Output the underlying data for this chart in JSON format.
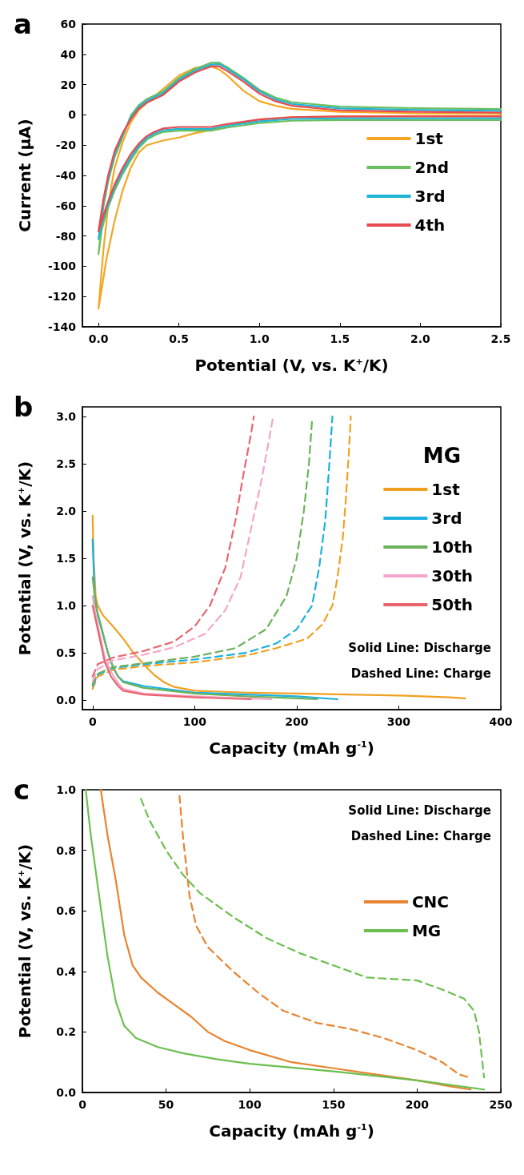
{
  "chart_data": [
    {
      "type": "line",
      "title": "a",
      "xlabel": "Potential (V, vs. K$^{+}$/K)",
      "ylabel": "Current (μA)",
      "xlim": [
        -0.1,
        2.5
      ],
      "ylim": [
        -140,
        60
      ],
      "xticks": [
        {
          "value": 0,
          "label": "0.0"
        },
        0.5,
        {
          "value": 1,
          "label": "1.0"
        },
        1.5,
        {
          "value": 2,
          "label": "2.0"
        },
        2.5
      ],
      "yticks": [
        -140,
        -120,
        -100,
        -80,
        -60,
        -40,
        -20,
        0,
        20,
        40,
        60
      ],
      "grid": false,
      "legend": "right",
      "marker": "none",
      "series": [
        {
          "name": "1st",
          "color": "#f5a623",
          "x": [
            2.5,
            1.5,
            1.2,
            1.0,
            0.8,
            0.7,
            0.6,
            0.5,
            0.4,
            0.3,
            0.25,
            0.2,
            0.15,
            0.1,
            0.05,
            0.02,
            0,
            0.03,
            0.06,
            0.1,
            0.15,
            0.2,
            0.25,
            0.3,
            0.4,
            0.5,
            0.6,
            0.7,
            0.75,
            0.8,
            0.9,
            1.0,
            1.1,
            1.2,
            1.5,
            2.0,
            2.5
          ],
          "values": [
            -0.5,
            -1,
            -1.5,
            -3,
            -7,
            -10,
            -12,
            -15,
            -17,
            -20,
            -25,
            -35,
            -50,
            -70,
            -95,
            -115,
            -128,
            -90,
            -60,
            -35,
            -18,
            -5,
            3,
            8,
            17,
            26,
            31,
            32,
            30,
            26,
            16,
            9,
            6,
            4,
            2,
            1,
            1
          ]
        },
        {
          "name": "2nd",
          "color": "#6abf5e",
          "x": [
            2.5,
            1.5,
            1.2,
            1.0,
            0.8,
            0.7,
            0.5,
            0.4,
            0.35,
            0.3,
            0.25,
            0.2,
            0.15,
            0.1,
            0.05,
            0.02,
            0,
            0.03,
            0.06,
            0.1,
            0.15,
            0.2,
            0.25,
            0.3,
            0.4,
            0.5,
            0.6,
            0.7,
            0.75,
            0.8,
            0.9,
            1.0,
            1.1,
            1.2,
            1.5,
            2.0,
            2.5
          ],
          "values": [
            -3.4,
            -3.4,
            -3.9,
            -5.4,
            -8.4,
            -10.4,
            -10.4,
            -11.4,
            -13.4,
            -16.4,
            -22,
            -30,
            -39,
            -50,
            -64,
            -76,
            -92,
            -61,
            -44,
            -28,
            -14.5,
            -0.6,
            6.4,
            10.4,
            15.4,
            24.4,
            30.4,
            34.4,
            34.5,
            31.5,
            24.5,
            16.5,
            11.4,
            8.4,
            5.4,
            4.4,
            3.9
          ]
        },
        {
          "name": "3rd",
          "color": "#1fb5d6",
          "x": [
            2.5,
            1.5,
            1.2,
            1.0,
            0.8,
            0.7,
            0.5,
            0.4,
            0.35,
            0.3,
            0.25,
            0.2,
            0.15,
            0.1,
            0.05,
            0.02,
            0,
            0.03,
            0.06,
            0.1,
            0.15,
            0.2,
            0.25,
            0.3,
            0.4,
            0.5,
            0.6,
            0.7,
            0.75,
            0.8,
            0.9,
            1.0,
            1.1,
            1.2,
            1.5,
            2.0,
            2.5
          ],
          "values": [
            -2.2,
            -2.2,
            -2.7,
            -4.2,
            -7.2,
            -9.2,
            -9.2,
            -10.2,
            -12.2,
            -15.2,
            -20.5,
            -28,
            -37,
            -48,
            -62,
            -72,
            -82,
            -58,
            -42,
            -26,
            -13,
            -1.8,
            5.2,
            9.2,
            14.2,
            23.2,
            29.2,
            33.2,
            33.5,
            30.5,
            23.5,
            15.5,
            10.2,
            7.2,
            4.2,
            3.2,
            2.7
          ]
        },
        {
          "name": "4th",
          "color": "#e84a4f",
          "x": [
            2.5,
            1.5,
            1.2,
            1.0,
            0.8,
            0.7,
            0.5,
            0.4,
            0.35,
            0.3,
            0.25,
            0.2,
            0.15,
            0.1,
            0.05,
            0.02,
            0,
            0.03,
            0.06,
            0.1,
            0.15,
            0.2,
            0.25,
            0.3,
            0.4,
            0.5,
            0.6,
            0.7,
            0.75,
            0.8,
            0.9,
            1.0,
            1.1,
            1.2,
            1.5,
            2.0,
            2.5
          ],
          "values": [
            -1,
            -1,
            -1.5,
            -3,
            -6,
            -8,
            -8,
            -9,
            -11,
            -14,
            -19,
            -26,
            -35,
            -46,
            -60,
            -70,
            -77,
            -56,
            -40,
            -24,
            -12,
            -3,
            4,
            8,
            13,
            22,
            28,
            32,
            32,
            29,
            22,
            14,
            9,
            6,
            3,
            2,
            1.5
          ]
        }
      ]
    },
    {
      "type": "line",
      "title": "b",
      "xlabel": "Capacity (mAh g$^{-1}$)",
      "ylabel": "Potential (V, vs. K$^{+}$/K)",
      "legend_title": "MG",
      "xlim": [
        -10,
        400
      ],
      "ylim": [
        -0.1,
        3.1
      ],
      "xticks": [
        0,
        100,
        200,
        300,
        400
      ],
      "yticks": [
        {
          "value": 0,
          "label": "0.0"
        },
        0.5,
        {
          "value": 1,
          "label": "1.0"
        },
        1.5,
        {
          "value": 2,
          "label": "2.0"
        },
        2.5,
        {
          "value": 3,
          "label": "3.0"
        }
      ],
      "grid": false,
      "legend": "right",
      "marker": "none",
      "annotations": [
        "Solid Line: Discharge",
        "Dashed Line: Charge"
      ],
      "series": [
        {
          "name": "1st",
          "color": "#f0a020",
          "line_style": "solid",
          "x": [
            0,
            1,
            3,
            5,
            10,
            20,
            30,
            40,
            50,
            60,
            70,
            80,
            100,
            150,
            200,
            250,
            300,
            350,
            365
          ],
          "values": [
            1.95,
            1.5,
            1.1,
            1.0,
            0.9,
            0.78,
            0.65,
            0.5,
            0.38,
            0.27,
            0.19,
            0.14,
            0.1,
            0.08,
            0.07,
            0.06,
            0.05,
            0.03,
            0.02
          ]
        },
        {
          "color": "#f0a020",
          "line_style": "dashed",
          "x": [
            0,
            5,
            20,
            50,
            100,
            150,
            180,
            210,
            225,
            235,
            240,
            245,
            248,
            251,
            253
          ],
          "values": [
            0.12,
            0.25,
            0.32,
            0.36,
            0.4,
            0.47,
            0.55,
            0.65,
            0.8,
            1.0,
            1.3,
            1.7,
            2.1,
            2.6,
            3.0
          ]
        },
        {
          "name": "3rd",
          "color": "#1ab0e0",
          "line_style": "solid",
          "x": [
            0,
            2,
            5,
            10,
            15,
            20,
            25,
            30,
            50,
            100,
            150,
            200,
            240
          ],
          "values": [
            1.7,
            1.1,
            0.9,
            0.7,
            0.5,
            0.35,
            0.25,
            0.2,
            0.15,
            0.08,
            0.06,
            0.04,
            0.01
          ]
        },
        {
          "color": "#1ab0e0",
          "line_style": "dashed",
          "x": [
            0,
            5,
            20,
            50,
            100,
            150,
            180,
            200,
            215,
            222,
            228,
            232,
            235
          ],
          "values": [
            0.15,
            0.27,
            0.34,
            0.38,
            0.43,
            0.5,
            0.6,
            0.75,
            1.0,
            1.4,
            1.9,
            2.5,
            3.0
          ]
        },
        {
          "name": "10th",
          "color": "#6cb25c",
          "line_style": "solid",
          "x": [
            0,
            3,
            8,
            15,
            20,
            25,
            30,
            50,
            100,
            150,
            200,
            220
          ],
          "values": [
            1.3,
            1.0,
            0.8,
            0.5,
            0.35,
            0.25,
            0.19,
            0.13,
            0.07,
            0.04,
            0.02,
            0.01
          ]
        },
        {
          "color": "#6cb25c",
          "line_style": "dashed",
          "x": [
            0,
            5,
            20,
            50,
            100,
            140,
            170,
            190,
            200,
            207,
            212,
            215
          ],
          "values": [
            0.17,
            0.28,
            0.35,
            0.39,
            0.46,
            0.55,
            0.75,
            1.1,
            1.5,
            2.0,
            2.5,
            2.95
          ]
        },
        {
          "name": "30th",
          "color": "#f4a6c8",
          "line_style": "solid",
          "x": [
            0,
            3,
            8,
            12,
            18,
            25,
            30,
            50,
            100,
            150,
            175
          ],
          "values": [
            1.1,
            0.9,
            0.65,
            0.45,
            0.3,
            0.18,
            0.12,
            0.07,
            0.04,
            0.02,
            0.01
          ]
        },
        {
          "color": "#f4a6c8",
          "line_style": "dashed",
          "x": [
            0,
            5,
            20,
            50,
            80,
            110,
            130,
            145,
            155,
            165,
            172,
            177
          ],
          "values": [
            0.2,
            0.33,
            0.42,
            0.48,
            0.56,
            0.7,
            0.95,
            1.3,
            1.8,
            2.3,
            2.7,
            3.0
          ]
        },
        {
          "name": "50th",
          "color": "#e8656e",
          "line_style": "solid",
          "x": [
            0,
            3,
            8,
            12,
            18,
            25,
            30,
            50,
            100,
            155
          ],
          "values": [
            1.0,
            0.85,
            0.6,
            0.4,
            0.25,
            0.15,
            0.1,
            0.06,
            0.03,
            0.01
          ]
        },
        {
          "color": "#e8656e",
          "line_style": "dashed",
          "x": [
            0,
            5,
            20,
            50,
            80,
            100,
            115,
            130,
            140,
            148,
            155,
            158
          ],
          "values": [
            0.25,
            0.38,
            0.45,
            0.52,
            0.62,
            0.78,
            1.0,
            1.4,
            1.9,
            2.4,
            2.8,
            3.0
          ]
        }
      ]
    },
    {
      "type": "line",
      "title": "c",
      "xlabel": "Capacity (mAh g$^{-1}$)",
      "ylabel": "Potential (V, vs. K$^{+}$/K)",
      "xlim": [
        0,
        250
      ],
      "ylim": [
        0,
        1
      ],
      "xticks": [
        0,
        50,
        100,
        150,
        200,
        250
      ],
      "yticks": [
        {
          "value": 0,
          "label": "0.0"
        },
        0.2,
        0.4,
        0.6,
        0.8,
        {
          "value": 1,
          "label": "1.0"
        }
      ],
      "grid": false,
      "legend": "top right",
      "marker": "none",
      "annotations": [
        "Solid Line: Discharge",
        "Dashed Line: Charge"
      ],
      "series": [
        {
          "name": "CNC",
          "color": "#e8832f",
          "line_style": "solid",
          "x": [
            11,
            15,
            20,
            25,
            30,
            35,
            45,
            55,
            65,
            75,
            85,
            100,
            125,
            150,
            175,
            200,
            220,
            232
          ],
          "values": [
            1.0,
            0.85,
            0.7,
            0.52,
            0.42,
            0.38,
            0.33,
            0.29,
            0.25,
            0.2,
            0.17,
            0.14,
            0.1,
            0.08,
            0.06,
            0.04,
            0.02,
            0.01
          ]
        },
        {
          "color": "#e8832f",
          "line_style": "dashed",
          "x": [
            58,
            60,
            62,
            64,
            68,
            75,
            90,
            105,
            120,
            140,
            160,
            180,
            200,
            215,
            225,
            231
          ],
          "values": [
            0.98,
            0.85,
            0.75,
            0.65,
            0.55,
            0.48,
            0.4,
            0.33,
            0.27,
            0.23,
            0.21,
            0.18,
            0.14,
            0.1,
            0.06,
            0.05
          ]
        },
        {
          "name": "MG",
          "color": "#6cbf4f",
          "line_style": "solid",
          "x": [
            2,
            5,
            10,
            15,
            20,
            25,
            32,
            45,
            60,
            80,
            100,
            150,
            200,
            240
          ],
          "values": [
            1.0,
            0.85,
            0.65,
            0.45,
            0.3,
            0.22,
            0.18,
            0.15,
            0.13,
            0.11,
            0.095,
            0.07,
            0.04,
            0.01
          ]
        },
        {
          "color": "#6cbf4f",
          "line_style": "dashed",
          "x": [
            35,
            40,
            50,
            60,
            70,
            90,
            110,
            130,
            150,
            170,
            200,
            215,
            228,
            234,
            237,
            239,
            240
          ],
          "values": [
            0.97,
            0.9,
            0.8,
            0.72,
            0.66,
            0.58,
            0.51,
            0.46,
            0.42,
            0.38,
            0.37,
            0.34,
            0.31,
            0.27,
            0.2,
            0.1,
            0.05
          ]
        }
      ]
    }
  ]
}
